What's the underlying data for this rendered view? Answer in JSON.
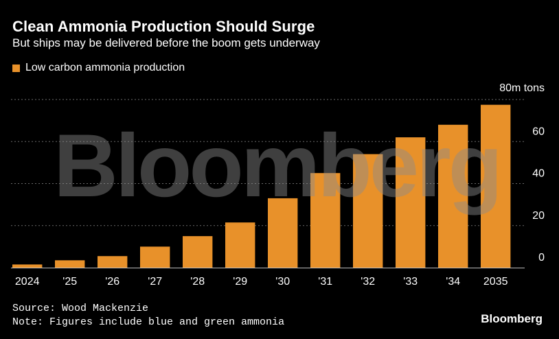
{
  "header": {
    "title": "Clean Ammonia Production Should Surge",
    "subtitle": "But ships may be delivered before the boom gets underway"
  },
  "legend": {
    "label": "Low carbon ammonia production",
    "color": "#e8912a"
  },
  "watermark": "Bloomberg",
  "footer": {
    "source": "Source: Wood Mackenzie",
    "note": "Note: Figures include blue and green ammonia",
    "brand": "Bloomberg"
  },
  "chart_data": {
    "type": "bar",
    "title": "Clean Ammonia Production Should Surge",
    "subtitle": "But ships may be delivered before the boom gets underway",
    "categories": [
      "2024",
      "'25",
      "'26",
      "'27",
      "'28",
      "'29",
      "'30",
      "'31",
      "'32",
      "'33",
      "'34",
      "2035"
    ],
    "series": [
      {
        "name": "Low carbon ammonia production",
        "values": [
          1.5,
          3.5,
          5.5,
          10,
          15,
          21.5,
          33,
          45,
          54,
          62,
          68,
          77.5
        ],
        "color": "#e8912a"
      }
    ],
    "ylim": [
      0,
      80
    ],
    "yticks": [
      0,
      20,
      40,
      60,
      80
    ],
    "ytick_labels": [
      "0",
      "20",
      "40",
      "60",
      "80m tons"
    ],
    "grid": true,
    "axis_position": "right",
    "legend_position": "top-left",
    "colors": {
      "background": "#000000",
      "grid": "#6b6b6b",
      "text": "#ffffff",
      "axis": "#bfbfbf"
    }
  }
}
